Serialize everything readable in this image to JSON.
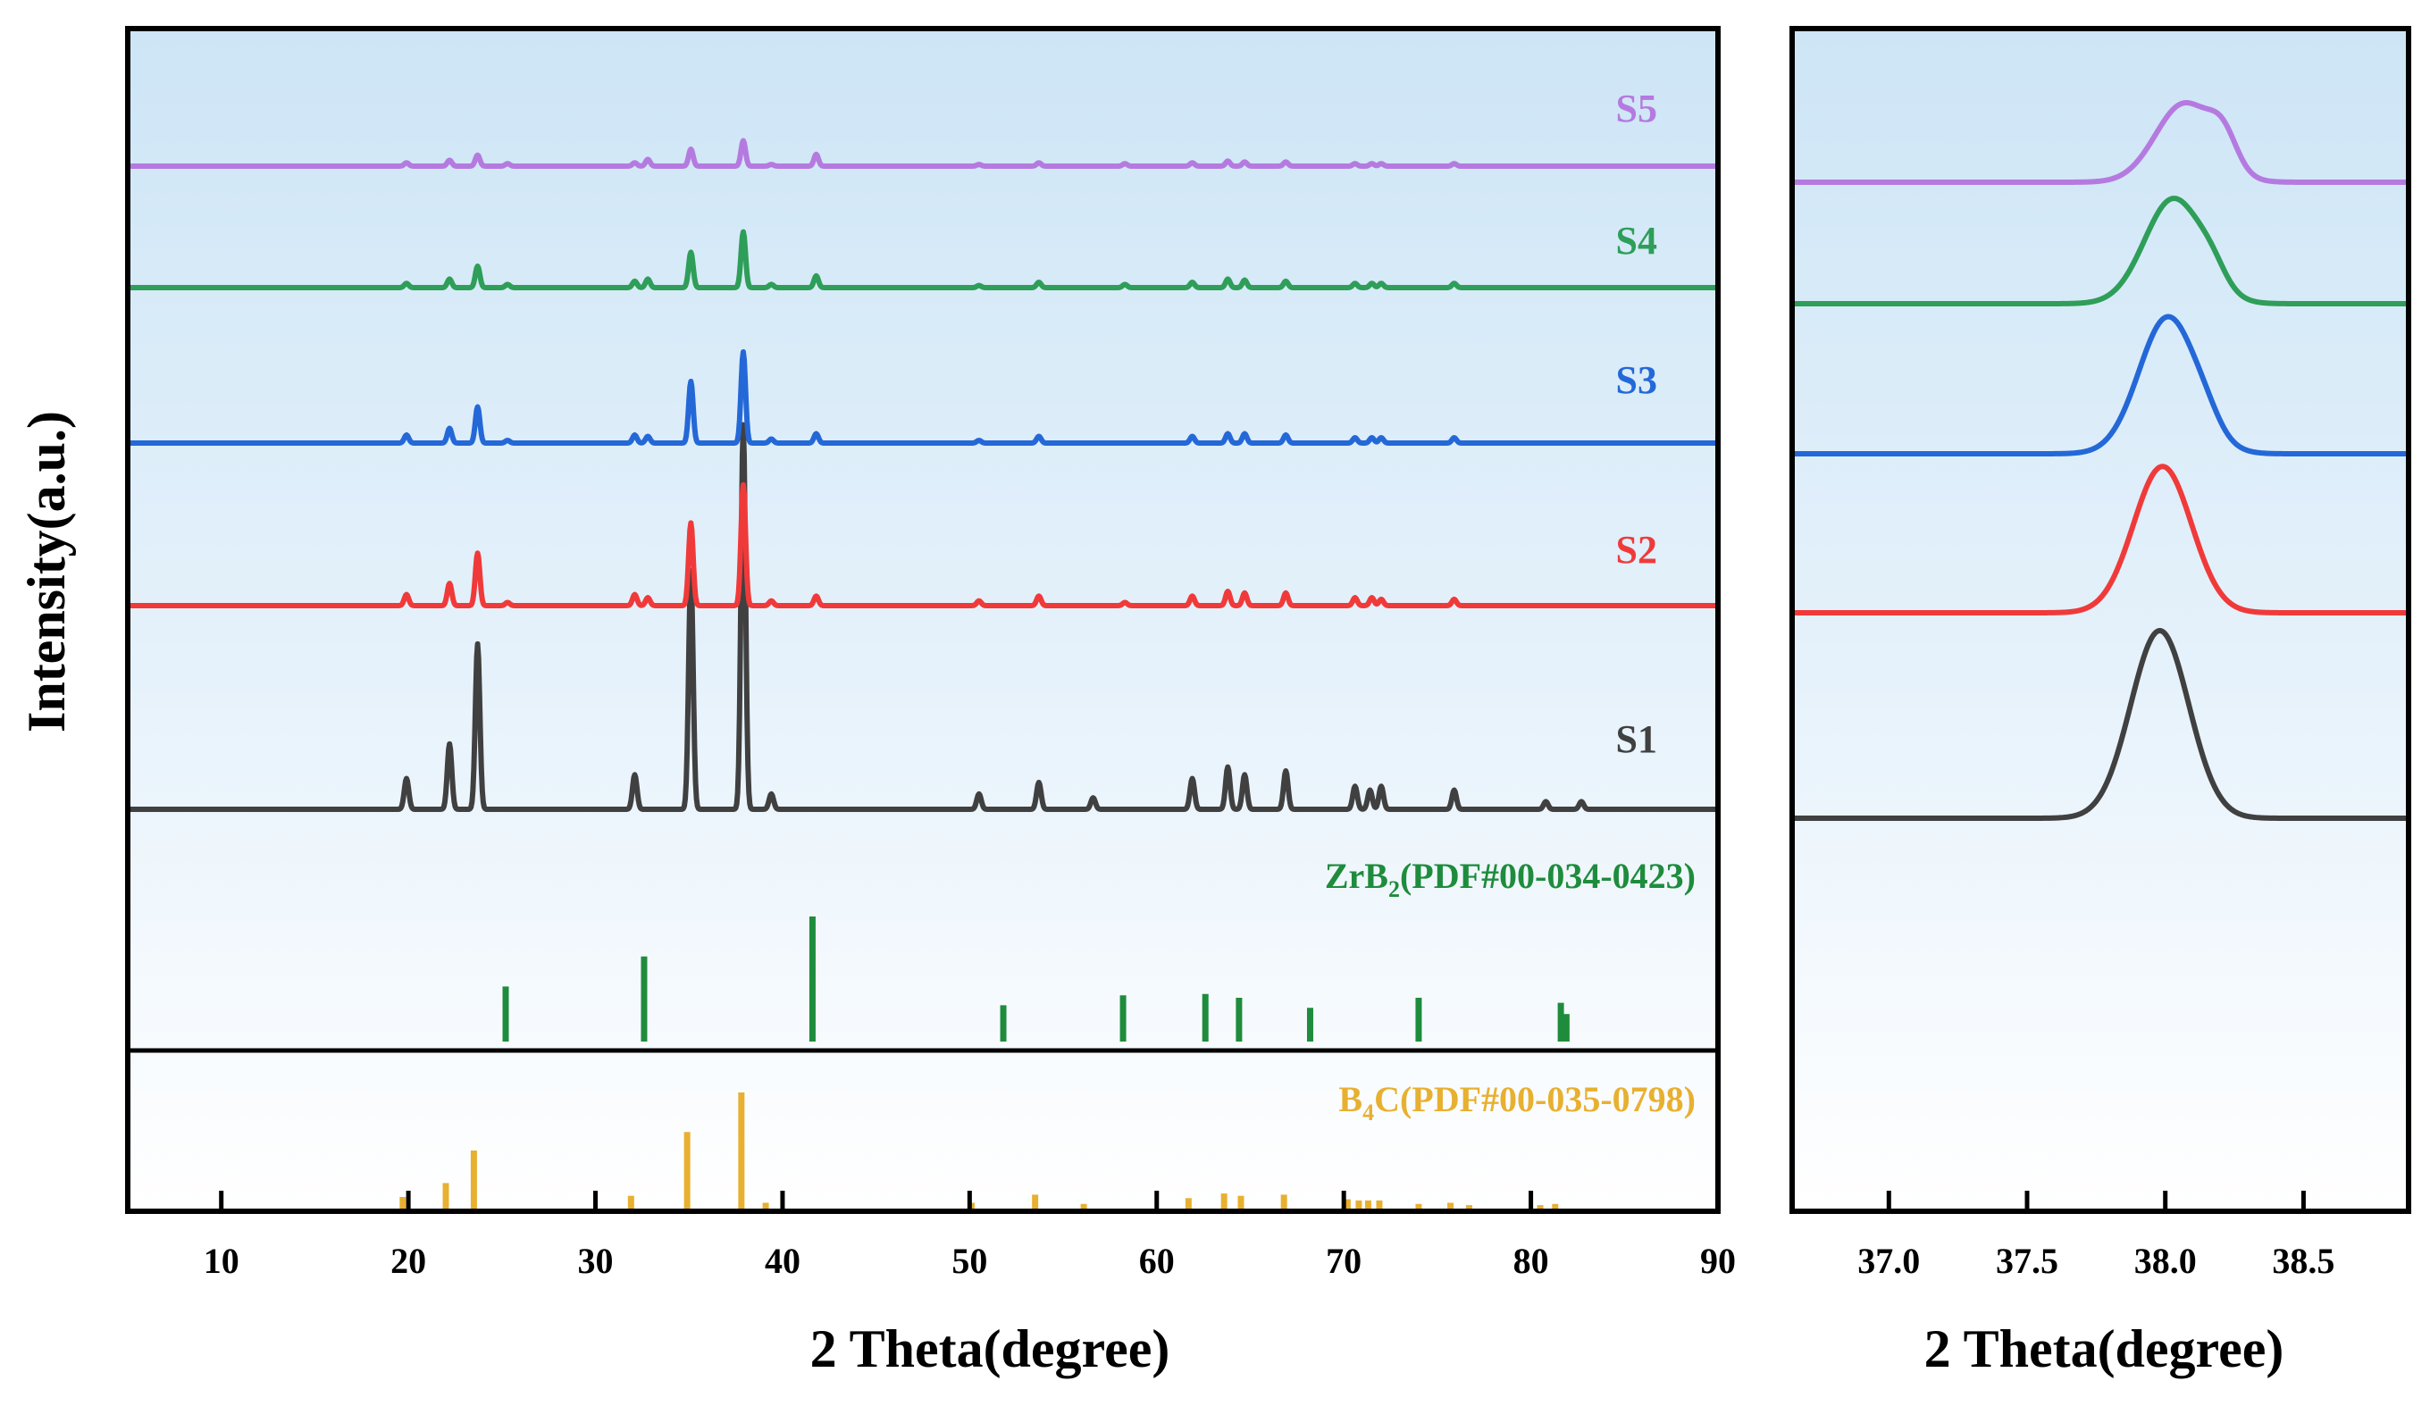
{
  "colors": {
    "S1": "#404040",
    "S2": "#f03a3a",
    "S3": "#2468d8",
    "S4": "#2e9e58",
    "S5": "#b57ae0",
    "zrb2": "#1e8c3c",
    "b4c": "#e8b030",
    "axis": "#000000",
    "bg_top": "#cfe6f7",
    "bg_bottom": "#ffffff"
  },
  "chart_data": [
    {
      "type": "line",
      "panel": "main",
      "xlabel": "2 Theta(degree)",
      "ylabel": "Intensity(a.u.)",
      "xlim": [
        5,
        90
      ],
      "xticks": [
        "10",
        "20",
        "30",
        "40",
        "50",
        "60",
        "70",
        "80",
        "90"
      ],
      "series": [
        {
          "name": "S1",
          "label": "S1",
          "offset": 0,
          "peaks": [
            {
              "x": 19.9,
              "h": 0.08
            },
            {
              "x": 22.2,
              "h": 0.17
            },
            {
              "x": 23.7,
              "h": 0.43
            },
            {
              "x": 32.1,
              "h": 0.09
            },
            {
              "x": 35.1,
              "h": 0.62
            },
            {
              "x": 37.9,
              "h": 1.0
            },
            {
              "x": 39.4,
              "h": 0.04
            },
            {
              "x": 50.5,
              "h": 0.04
            },
            {
              "x": 53.7,
              "h": 0.07
            },
            {
              "x": 56.6,
              "h": 0.03
            },
            {
              "x": 61.9,
              "h": 0.08
            },
            {
              "x": 63.8,
              "h": 0.11
            },
            {
              "x": 64.7,
              "h": 0.09
            },
            {
              "x": 66.9,
              "h": 0.1
            },
            {
              "x": 70.6,
              "h": 0.06
            },
            {
              "x": 71.4,
              "h": 0.05
            },
            {
              "x": 72.0,
              "h": 0.06
            },
            {
              "x": 75.9,
              "h": 0.05
            },
            {
              "x": 80.8,
              "h": 0.02
            },
            {
              "x": 82.7,
              "h": 0.02
            }
          ]
        },
        {
          "name": "S2",
          "label": "S2",
          "offset": 1,
          "peaks": [
            {
              "x": 19.9,
              "h": 0.07
            },
            {
              "x": 22.2,
              "h": 0.14
            },
            {
              "x": 23.7,
              "h": 0.33
            },
            {
              "x": 25.3,
              "h": 0.02
            },
            {
              "x": 32.1,
              "h": 0.07
            },
            {
              "x": 32.8,
              "h": 0.05
            },
            {
              "x": 35.1,
              "h": 0.52
            },
            {
              "x": 37.9,
              "h": 0.76
            },
            {
              "x": 39.4,
              "h": 0.03
            },
            {
              "x": 41.8,
              "h": 0.06
            },
            {
              "x": 50.5,
              "h": 0.03
            },
            {
              "x": 53.7,
              "h": 0.06
            },
            {
              "x": 58.3,
              "h": 0.02
            },
            {
              "x": 61.9,
              "h": 0.06
            },
            {
              "x": 63.8,
              "h": 0.09
            },
            {
              "x": 64.7,
              "h": 0.08
            },
            {
              "x": 66.9,
              "h": 0.08
            },
            {
              "x": 70.6,
              "h": 0.05
            },
            {
              "x": 71.5,
              "h": 0.05
            },
            {
              "x": 72.0,
              "h": 0.04
            },
            {
              "x": 75.9,
              "h": 0.04
            }
          ]
        },
        {
          "name": "S3",
          "label": "S3",
          "offset": 2,
          "peaks": [
            {
              "x": 19.9,
              "h": 0.06
            },
            {
              "x": 22.2,
              "h": 0.11
            },
            {
              "x": 23.7,
              "h": 0.27
            },
            {
              "x": 25.3,
              "h": 0.02
            },
            {
              "x": 32.1,
              "h": 0.06
            },
            {
              "x": 32.8,
              "h": 0.05
            },
            {
              "x": 35.1,
              "h": 0.46
            },
            {
              "x": 37.9,
              "h": 0.68
            },
            {
              "x": 39.4,
              "h": 0.03
            },
            {
              "x": 41.8,
              "h": 0.07
            },
            {
              "x": 50.5,
              "h": 0.02
            },
            {
              "x": 53.7,
              "h": 0.05
            },
            {
              "x": 61.9,
              "h": 0.05
            },
            {
              "x": 63.8,
              "h": 0.07
            },
            {
              "x": 64.7,
              "h": 0.07
            },
            {
              "x": 66.9,
              "h": 0.06
            },
            {
              "x": 70.6,
              "h": 0.04
            },
            {
              "x": 71.5,
              "h": 0.04
            },
            {
              "x": 72.0,
              "h": 0.04
            },
            {
              "x": 75.9,
              "h": 0.04
            }
          ]
        },
        {
          "name": "S4",
          "label": "S4",
          "offset": 3,
          "peaks": [
            {
              "x": 19.9,
              "h": 0.04
            },
            {
              "x": 22.2,
              "h": 0.08
            },
            {
              "x": 23.7,
              "h": 0.2
            },
            {
              "x": 25.3,
              "h": 0.03
            },
            {
              "x": 32.1,
              "h": 0.06
            },
            {
              "x": 32.8,
              "h": 0.08
            },
            {
              "x": 35.1,
              "h": 0.33
            },
            {
              "x": 37.9,
              "h": 0.52
            },
            {
              "x": 39.4,
              "h": 0.03
            },
            {
              "x": 41.8,
              "h": 0.11
            },
            {
              "x": 50.5,
              "h": 0.02
            },
            {
              "x": 53.7,
              "h": 0.05
            },
            {
              "x": 58.3,
              "h": 0.03
            },
            {
              "x": 61.9,
              "h": 0.05
            },
            {
              "x": 63.8,
              "h": 0.08
            },
            {
              "x": 64.7,
              "h": 0.07
            },
            {
              "x": 66.9,
              "h": 0.06
            },
            {
              "x": 70.6,
              "h": 0.04
            },
            {
              "x": 71.5,
              "h": 0.04
            },
            {
              "x": 72.0,
              "h": 0.04
            },
            {
              "x": 75.9,
              "h": 0.04
            }
          ]
        },
        {
          "name": "S5",
          "label": "S5",
          "offset": 4,
          "peaks": [
            {
              "x": 19.9,
              "h": 0.04
            },
            {
              "x": 22.2,
              "h": 0.07
            },
            {
              "x": 23.7,
              "h": 0.13
            },
            {
              "x": 25.3,
              "h": 0.03
            },
            {
              "x": 32.1,
              "h": 0.04
            },
            {
              "x": 32.8,
              "h": 0.08
            },
            {
              "x": 35.1,
              "h": 0.2
            },
            {
              "x": 37.9,
              "h": 0.3
            },
            {
              "x": 39.4,
              "h": 0.02
            },
            {
              "x": 41.8,
              "h": 0.14
            },
            {
              "x": 50.5,
              "h": 0.02
            },
            {
              "x": 53.7,
              "h": 0.04
            },
            {
              "x": 58.3,
              "h": 0.03
            },
            {
              "x": 61.9,
              "h": 0.04
            },
            {
              "x": 63.8,
              "h": 0.06
            },
            {
              "x": 64.7,
              "h": 0.05
            },
            {
              "x": 66.9,
              "h": 0.05
            },
            {
              "x": 70.6,
              "h": 0.03
            },
            {
              "x": 71.5,
              "h": 0.03
            },
            {
              "x": 72.0,
              "h": 0.03
            },
            {
              "x": 75.9,
              "h": 0.03
            }
          ]
        }
      ],
      "reference_patterns": [
        {
          "name": "ZrB2",
          "label_main": "ZrB",
          "label_sub": "2",
          "label_rest": "(PDF#00-034-0423)",
          "lines": [
            {
              "x": 25.2,
              "h": 0.44
            },
            {
              "x": 32.6,
              "h": 0.68
            },
            {
              "x": 41.6,
              "h": 1.0
            },
            {
              "x": 51.8,
              "h": 0.29
            },
            {
              "x": 58.2,
              "h": 0.37
            },
            {
              "x": 62.6,
              "h": 0.38
            },
            {
              "x": 64.4,
              "h": 0.35
            },
            {
              "x": 68.2,
              "h": 0.27
            },
            {
              "x": 74.0,
              "h": 0.35
            },
            {
              "x": 81.6,
              "h": 0.31
            },
            {
              "x": 81.9,
              "h": 0.22
            }
          ]
        },
        {
          "name": "B4C",
          "label_main": "B",
          "label_sub": "4",
          "label_rest": "C(PDF#00-035-0798)",
          "lines": [
            {
              "x": 19.7,
              "h": 0.1
            },
            {
              "x": 22.0,
              "h": 0.22
            },
            {
              "x": 23.5,
              "h": 0.5
            },
            {
              "x": 31.9,
              "h": 0.11
            },
            {
              "x": 34.9,
              "h": 0.66
            },
            {
              "x": 37.8,
              "h": 1.0
            },
            {
              "x": 39.1,
              "h": 0.05
            },
            {
              "x": 50.1,
              "h": 0.05
            },
            {
              "x": 53.5,
              "h": 0.12
            },
            {
              "x": 56.1,
              "h": 0.04
            },
            {
              "x": 61.7,
              "h": 0.09
            },
            {
              "x": 63.6,
              "h": 0.13
            },
            {
              "x": 64.5,
              "h": 0.11
            },
            {
              "x": 66.8,
              "h": 0.12
            },
            {
              "x": 70.2,
              "h": 0.08
            },
            {
              "x": 70.8,
              "h": 0.07
            },
            {
              "x": 71.3,
              "h": 0.07
            },
            {
              "x": 71.9,
              "h": 0.07
            },
            {
              "x": 74.0,
              "h": 0.04
            },
            {
              "x": 75.7,
              "h": 0.05
            },
            {
              "x": 76.7,
              "h": 0.03
            },
            {
              "x": 80.5,
              "h": 0.03
            },
            {
              "x": 81.3,
              "h": 0.04
            }
          ]
        }
      ]
    },
    {
      "type": "line",
      "panel": "zoom",
      "xlabel": "2 Theta(degree)",
      "xlim": [
        36.65,
        38.88
      ],
      "xticks": [
        "37.0",
        "37.5",
        "38.0",
        "38.5"
      ],
      "series": [
        {
          "name": "S1",
          "center": 37.98,
          "height": 1.0,
          "shoulder": 0.0
        },
        {
          "name": "S2",
          "center": 37.99,
          "height": 0.78,
          "shoulder": 0.0
        },
        {
          "name": "S3",
          "center": 38.01,
          "height": 0.73,
          "shoulder": 0.05
        },
        {
          "name": "S4",
          "center": 38.03,
          "height": 0.56,
          "shoulder": 0.08
        },
        {
          "name": "S5",
          "center": 38.07,
          "height": 0.42,
          "shoulder": 0.16
        }
      ]
    }
  ]
}
